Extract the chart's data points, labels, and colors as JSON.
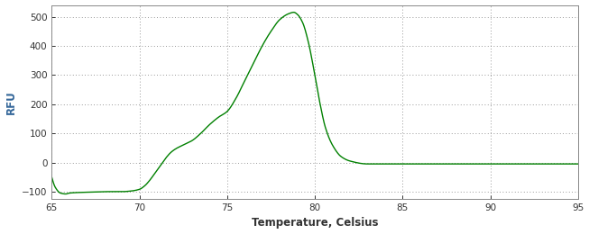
{
  "title": "",
  "xlabel": "Temperature, Celsius",
  "ylabel": "RFU",
  "xlabel_color": "#333333",
  "ylabel_color": "#336699",
  "line_color": "#008000",
  "background_color": "#ffffff",
  "grid_color": "#666666",
  "xlim": [
    65,
    95
  ],
  "ylim": [
    -125,
    540
  ],
  "xticks": [
    65,
    70,
    75,
    80,
    85,
    90,
    95
  ],
  "yticks": [
    -100,
    0,
    100,
    200,
    300,
    400,
    500
  ],
  "tick_color": "#333333",
  "spine_color": "#888888",
  "curve_points_x": [
    65.0,
    65.2,
    65.5,
    65.8,
    66.0,
    66.5,
    67.0,
    67.5,
    68.0,
    68.5,
    69.0,
    69.5,
    70.0,
    70.3,
    70.6,
    70.9,
    71.2,
    71.5,
    71.8,
    72.1,
    72.5,
    73.0,
    73.5,
    74.0,
    74.5,
    75.0,
    75.5,
    76.0,
    76.5,
    77.0,
    77.5,
    78.0,
    78.5,
    78.8,
    79.0,
    79.3,
    79.6,
    80.0,
    80.3,
    80.6,
    81.0,
    81.5,
    82.0,
    83.0,
    84.0,
    85.0,
    87.0,
    90.0,
    95.0
  ],
  "curve_points_y": [
    -50,
    -85,
    -105,
    -108,
    -105,
    -103,
    -102,
    -101,
    -100,
    -100,
    -100,
    -98,
    -92,
    -80,
    -60,
    -35,
    -10,
    15,
    35,
    48,
    60,
    75,
    100,
    130,
    155,
    175,
    220,
    280,
    340,
    400,
    450,
    490,
    510,
    515,
    508,
    480,
    420,
    300,
    200,
    120,
    60,
    20,
    5,
    -5,
    -5,
    -5,
    -5,
    -5,
    -5
  ]
}
